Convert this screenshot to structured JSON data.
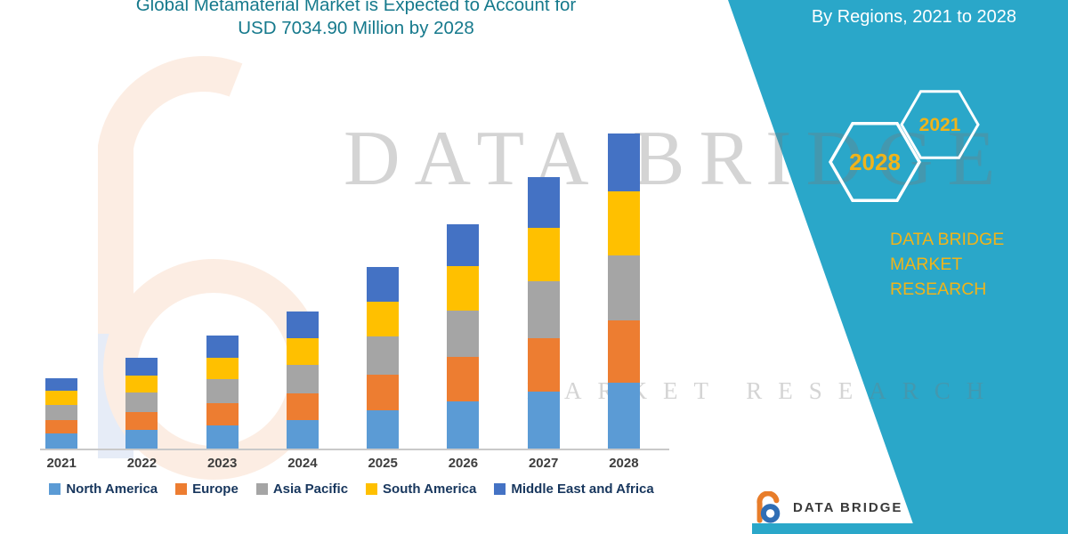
{
  "title": {
    "line1": "Global Metamaterial Market is Expected to Account for",
    "line2": "USD 7034.90 Million by 2028"
  },
  "panel": {
    "heading": "By Regions, 2021 to 2028",
    "hexagons": [
      {
        "year": "2028"
      },
      {
        "year": "2021"
      }
    ],
    "brand_line1": "DATA BRIDGE MARKET",
    "brand_line2": "RESEARCH",
    "bg_color": "#2AA7C9",
    "accent_yellow": "#F0B41A"
  },
  "watermark": {
    "brand": "DATA BRIDGE",
    "caption": "MARKET RESEARCH"
  },
  "footer_logo": {
    "name": "DATA BRIDGE",
    "banner_color": "#2AA7C9"
  },
  "chart_data": {
    "type": "bar",
    "stacked": true,
    "title": "Global Metamaterial Market is Expected to Account for USD 7034.90 Million by 2028",
    "unit": "USD Million",
    "xlabel": "",
    "ylabel": "",
    "grid": false,
    "legend_position": "bottom",
    "categories": [
      "2021",
      "2022",
      "2023",
      "2024",
      "2025",
      "2026",
      "2027",
      "2028"
    ],
    "series": [
      {
        "name": "North America",
        "color": "#5B9BD5",
        "values": [
          355,
          435,
          535,
          655,
          870,
          1070,
          1285,
          1485
        ]
      },
      {
        "name": "Europe",
        "color": "#ED7D31",
        "values": [
          295,
          395,
          495,
          595,
          790,
          990,
          1190,
          1385
        ]
      },
      {
        "name": "Asia Pacific",
        "color": "#A5A5A5",
        "values": [
          335,
          435,
          535,
          635,
          850,
          1030,
          1265,
          1445
        ]
      },
      {
        "name": "South America",
        "color": "#FFC000",
        "values": [
          315,
          375,
          475,
          595,
          790,
          990,
          1190,
          1428
        ]
      },
      {
        "name": "Middle East and Africa",
        "color": "#4472C4",
        "values": [
          295,
          395,
          495,
          595,
          770,
          930,
          1130,
          1291.9
        ]
      }
    ],
    "totals_by_year": [
      1595,
      2035,
      2535,
      3075,
      4070,
      5010,
      6060,
      7034.9
    ],
    "total_2028": 7034.9
  }
}
